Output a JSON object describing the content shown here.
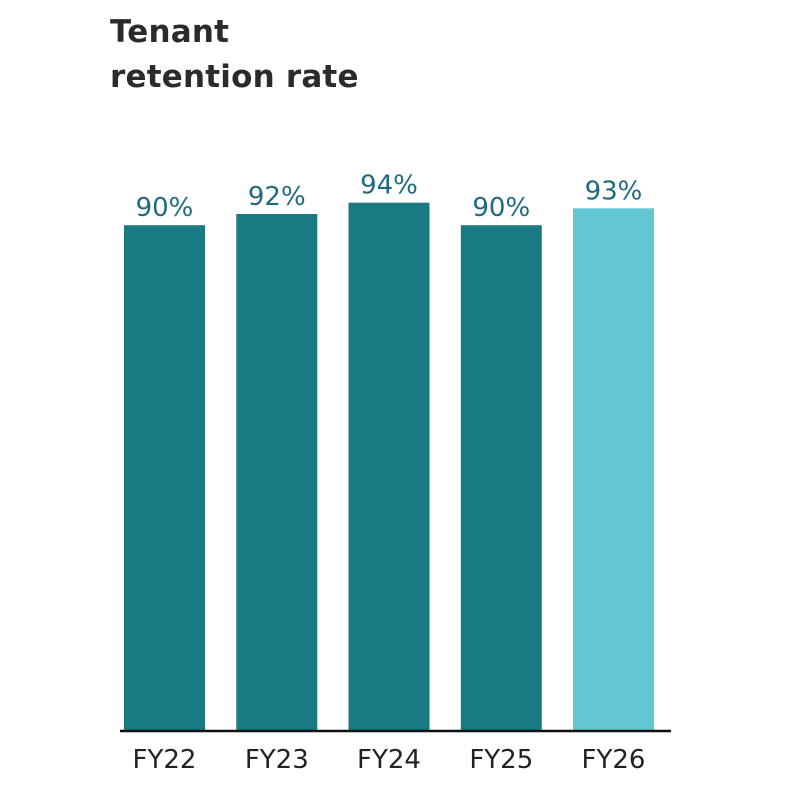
{
  "chart_data": {
    "type": "bar",
    "title_lines": [
      "Tenant",
      "retention rate"
    ],
    "categories": [
      "FY22",
      "FY23",
      "FY24",
      "FY25",
      "FY26"
    ],
    "values": [
      90,
      92,
      94,
      90,
      93
    ],
    "value_labels": [
      "90%",
      "92%",
      "94%",
      "90%",
      "93%"
    ],
    "highlight_index": 4,
    "colors": {
      "bar": "#1a7a84",
      "bar_highlight": "#62c7d0",
      "value_label": "#1f6a80",
      "axis": "#111111",
      "tick_label": "#222222"
    },
    "ylim": [
      0,
      100
    ],
    "grid": false,
    "legend": "none"
  }
}
